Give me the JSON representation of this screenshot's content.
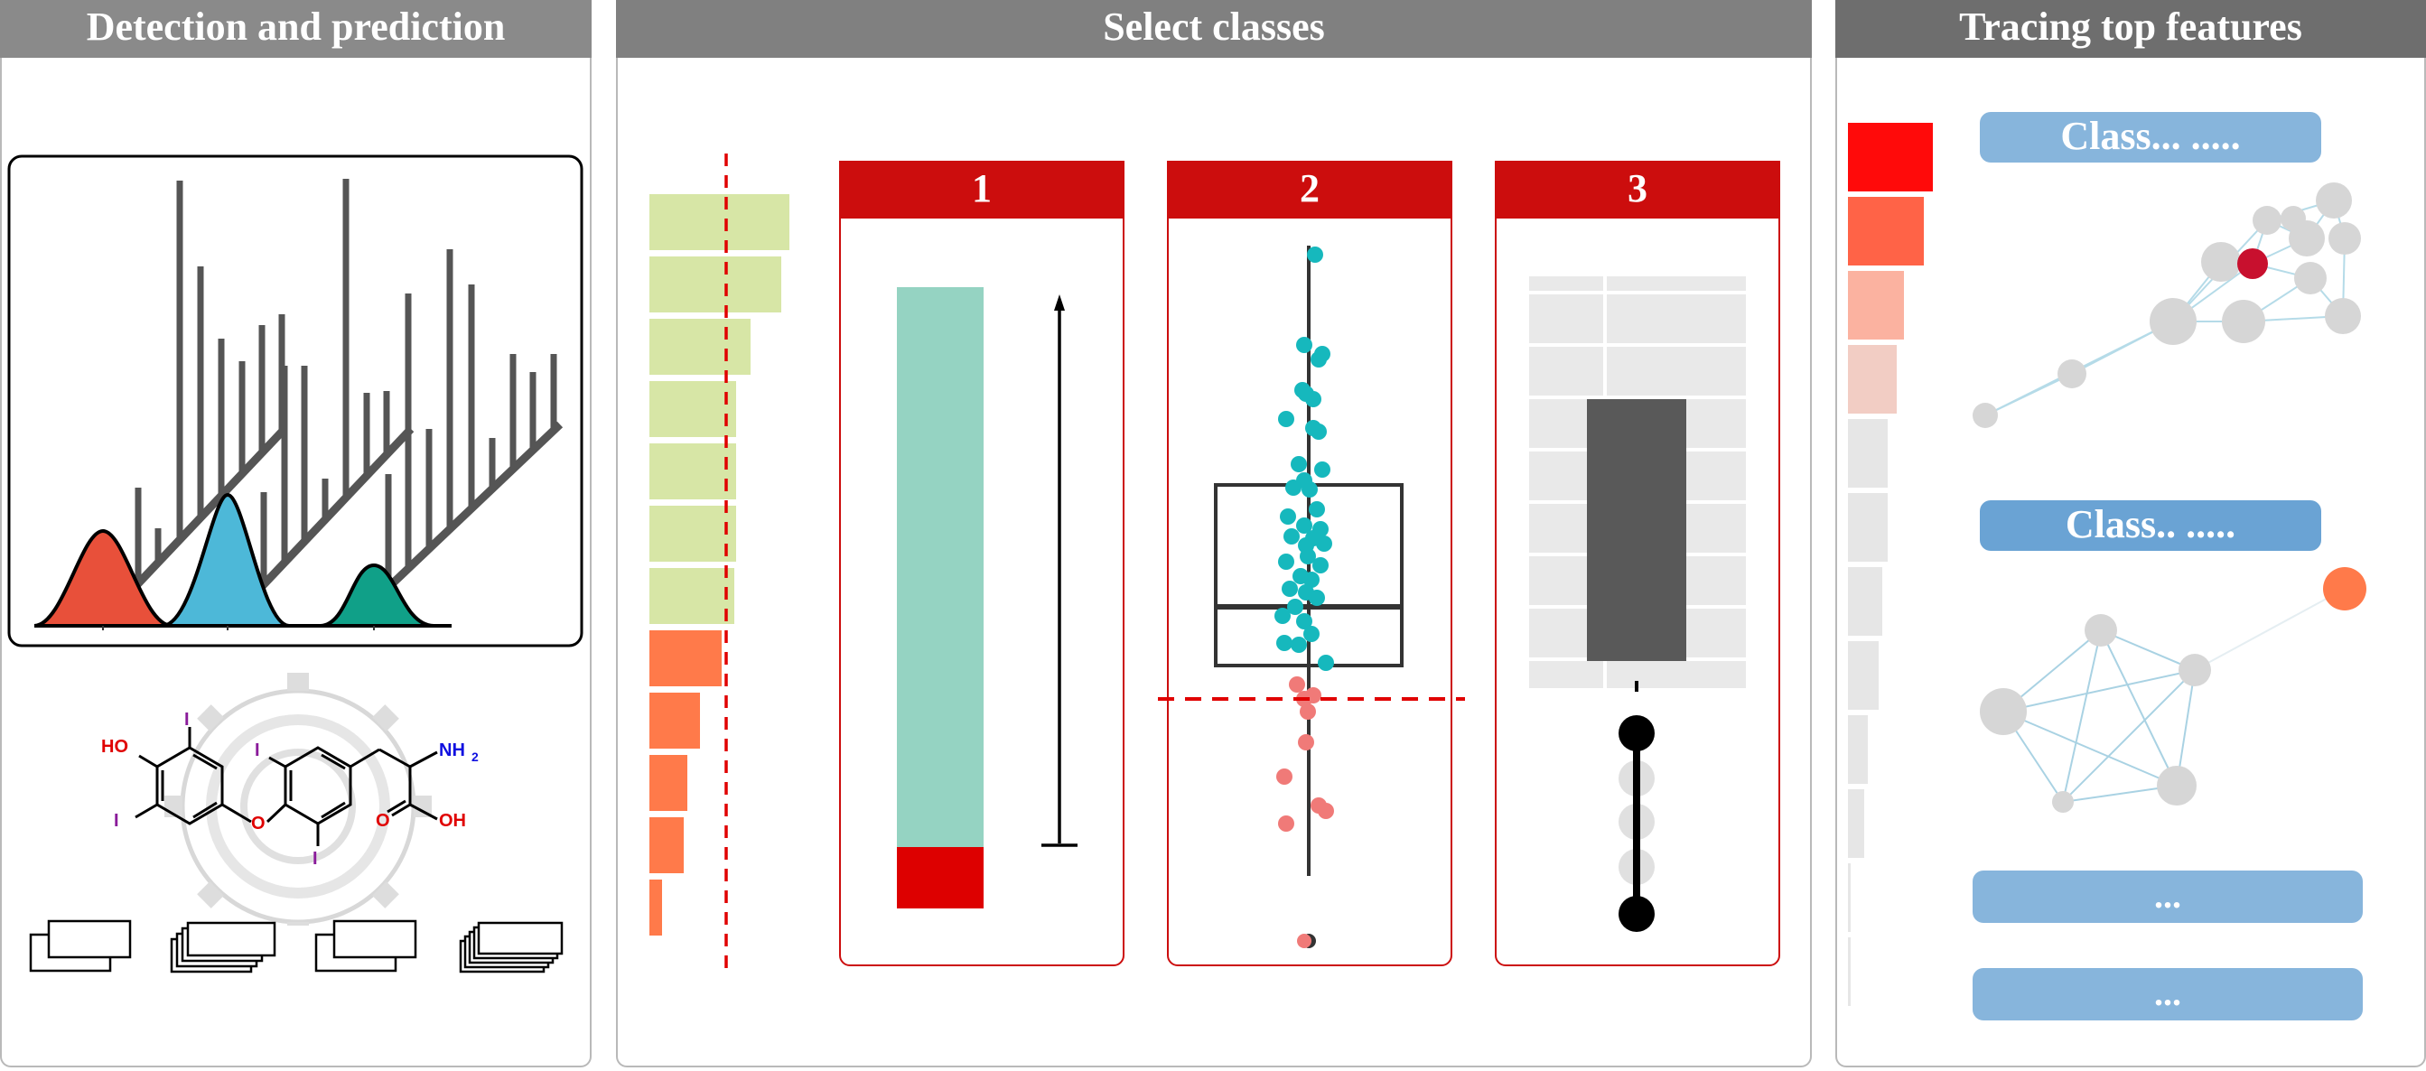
{
  "panels": {
    "detection": {
      "title": "Detection and prediction"
    },
    "select": {
      "title": "Select classes"
    },
    "tracing": {
      "title": "Tracing top features"
    }
  },
  "molecule": {
    "labels": {
      "ho": "HO",
      "nh2": "NH",
      "nh2_sub": "2",
      "oh": "OH",
      "o_ether": "O",
      "o_carbonyl": "O",
      "iodine": "I"
    }
  },
  "class_panels": [
    "1",
    "2",
    "3"
  ],
  "tracing": {
    "class_labels": [
      "Class... .....",
      "Class.. .....",
      "...",
      "..."
    ]
  },
  "colors": {
    "header_gray": "#808080",
    "header_dark": "#6e6e6e",
    "accent_red": "#cc0d0d",
    "teal_point": "#16b8bd",
    "salmon_point": "#f07a78",
    "green_bar": "#d7e6a6",
    "orange_bar": "#ff7a4a",
    "bar_teal": "#95d3c2",
    "label_blue": "#87b5dc"
  }
}
